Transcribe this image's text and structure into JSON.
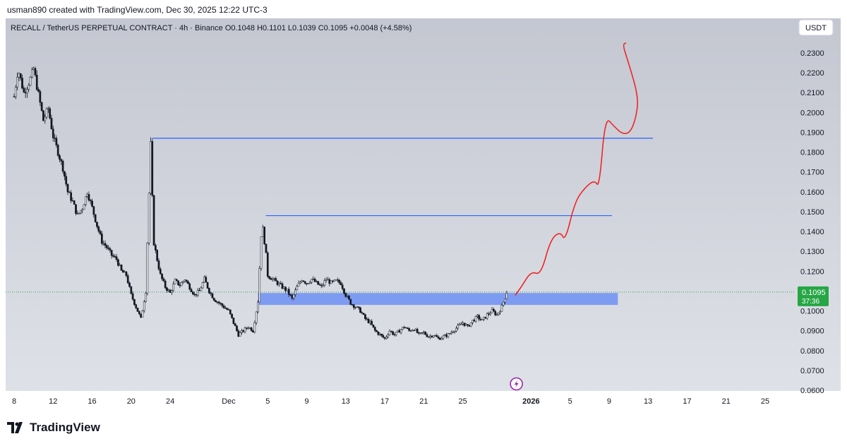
{
  "header": {
    "attribution": "usman890 created with TradingView.com, Dec 30, 2025 12:22 UTC-3"
  },
  "legend": {
    "symbol": "RECALL / TetherUS PERPETUAL CONTRACT · 4h · Binance",
    "open": "O0.1048",
    "high": "H0.1101",
    "low": "L0.1039",
    "close": "C0.1095",
    "change": "+0.0048 (+4.58%)"
  },
  "currency_button": "USDT",
  "price_tag": {
    "price": "0.1095",
    "countdown": "37:36"
  },
  "footer": {
    "logo_text": "TradingView"
  },
  "colors": {
    "background": "#c9ccd6",
    "candle": "#131722",
    "level_line": "#2962ff",
    "zone": "#6f8ff5",
    "forecast": "#ef2626",
    "price_tag": "#26a645",
    "icon": "#9c27b0"
  },
  "chart_data": {
    "type": "candlestick",
    "y_axis": {
      "min": 0.06,
      "max": 0.24,
      "ticks": [
        "0.0600",
        "0.0700",
        "0.0800",
        "0.0900",
        "0.1000",
        "0.1100",
        "0.1200",
        "0.1300",
        "0.1400",
        "0.1500",
        "0.1600",
        "0.1700",
        "0.1800",
        "0.1900",
        "0.2000",
        "0.2100",
        "0.2200",
        "0.2300"
      ]
    },
    "x_axis": {
      "ticks": [
        {
          "label": "8",
          "day": 8
        },
        {
          "label": "12",
          "day": 12
        },
        {
          "label": "16",
          "day": 16
        },
        {
          "label": "20",
          "day": 20
        },
        {
          "label": "24",
          "day": 24
        },
        {
          "label": "Dec",
          "day": 30
        },
        {
          "label": "5",
          "day": 34
        },
        {
          "label": "9",
          "day": 38
        },
        {
          "label": "13",
          "day": 42
        },
        {
          "label": "17",
          "day": 46
        },
        {
          "label": "21",
          "day": 50
        },
        {
          "label": "25",
          "day": 54
        },
        {
          "label": "2026",
          "day": 61,
          "bold": true
        },
        {
          "label": "5",
          "day": 65
        },
        {
          "label": "9",
          "day": 69
        },
        {
          "label": "13",
          "day": 73
        },
        {
          "label": "17",
          "day": 77
        },
        {
          "label": "21",
          "day": 81
        },
        {
          "label": "25",
          "day": 85
        }
      ]
    },
    "price_path": [
      [
        8,
        0.208
      ],
      [
        8.4,
        0.222
      ],
      [
        9,
        0.21
      ],
      [
        9.6,
        0.216
      ],
      [
        10,
        0.222
      ],
      [
        11,
        0.196
      ],
      [
        11.5,
        0.202
      ],
      [
        12,
        0.188
      ],
      [
        12.5,
        0.18
      ],
      [
        13,
        0.172
      ],
      [
        13.5,
        0.16
      ],
      [
        14,
        0.155
      ],
      [
        14.5,
        0.148
      ],
      [
        15,
        0.152
      ],
      [
        15.5,
        0.16
      ],
      [
        16,
        0.152
      ],
      [
        16.5,
        0.143
      ],
      [
        17,
        0.135
      ],
      [
        17.5,
        0.132
      ],
      [
        18,
        0.128
      ],
      [
        18.5,
        0.126
      ],
      [
        19,
        0.12
      ],
      [
        19.5,
        0.118
      ],
      [
        20,
        0.108
      ],
      [
        20.5,
        0.102
      ],
      [
        21,
        0.096
      ],
      [
        21.5,
        0.11
      ],
      [
        22,
        0.184
      ],
      [
        22.3,
        0.135
      ],
      [
        22.7,
        0.125
      ],
      [
        23,
        0.118
      ],
      [
        23.5,
        0.112
      ],
      [
        24,
        0.109
      ],
      [
        24.5,
        0.115
      ],
      [
        25,
        0.113
      ],
      [
        25.5,
        0.116
      ],
      [
        26,
        0.112
      ],
      [
        26.5,
        0.108
      ],
      [
        27,
        0.11
      ],
      [
        27.5,
        0.116
      ],
      [
        28,
        0.11
      ],
      [
        28.5,
        0.106
      ],
      [
        29,
        0.104
      ],
      [
        29.5,
        0.102
      ],
      [
        30,
        0.1
      ],
      [
        30.5,
        0.094
      ],
      [
        31,
        0.088
      ],
      [
        31.5,
        0.09
      ],
      [
        32,
        0.092
      ],
      [
        32.5,
        0.09
      ],
      [
        33,
        0.105
      ],
      [
        33.4,
        0.145
      ],
      [
        33.8,
        0.13
      ],
      [
        34,
        0.118
      ],
      [
        34.5,
        0.116
      ],
      [
        35,
        0.114
      ],
      [
        35.5,
        0.112
      ],
      [
        36,
        0.11
      ],
      [
        36.5,
        0.106
      ],
      [
        37,
        0.112
      ],
      [
        37.5,
        0.116
      ],
      [
        38,
        0.114
      ],
      [
        38.5,
        0.116
      ],
      [
        39,
        0.114
      ],
      [
        39.5,
        0.112
      ],
      [
        40,
        0.116
      ],
      [
        40.5,
        0.114
      ],
      [
        41,
        0.115
      ],
      [
        41.5,
        0.114
      ],
      [
        42,
        0.108
      ],
      [
        42.5,
        0.104
      ],
      [
        43,
        0.102
      ],
      [
        43.5,
        0.1
      ],
      [
        44,
        0.096
      ],
      [
        44.5,
        0.094
      ],
      [
        45,
        0.09
      ],
      [
        45.5,
        0.088
      ],
      [
        46,
        0.086
      ],
      [
        46.5,
        0.09
      ],
      [
        47,
        0.088
      ],
      [
        47.5,
        0.09
      ],
      [
        48,
        0.092
      ],
      [
        48.5,
        0.09
      ],
      [
        49,
        0.091
      ],
      [
        49.5,
        0.088
      ],
      [
        50,
        0.089
      ],
      [
        50.5,
        0.087
      ],
      [
        51,
        0.088
      ],
      [
        51.5,
        0.086
      ],
      [
        52,
        0.087
      ],
      [
        52.5,
        0.088
      ],
      [
        53,
        0.09
      ],
      [
        53.5,
        0.092
      ],
      [
        54,
        0.094
      ],
      [
        54.5,
        0.092
      ],
      [
        55,
        0.095
      ],
      [
        55.5,
        0.097
      ],
      [
        56,
        0.095
      ],
      [
        56.5,
        0.098
      ],
      [
        57,
        0.1
      ],
      [
        57.5,
        0.098
      ],
      [
        58,
        0.102
      ],
      [
        58.5,
        0.1095
      ]
    ],
    "horizontal_lines": [
      {
        "price": 0.187,
        "from_day": 22.2,
        "to_day": 73.5
      },
      {
        "price": 0.148,
        "from_day": 33.8,
        "to_day": 69.3
      }
    ],
    "zone": {
      "from_day": 33.0,
      "to_day": 69.9,
      "low": 0.103,
      "high": 0.109
    },
    "forecast_path": [
      [
        59.4,
        0.108
      ],
      [
        60.0,
        0.112
      ],
      [
        61.0,
        0.12
      ],
      [
        62.0,
        0.118
      ],
      [
        63.0,
        0.136
      ],
      [
        64.0,
        0.14
      ],
      [
        64.5,
        0.135
      ],
      [
        65.5,
        0.155
      ],
      [
        66.5,
        0.162
      ],
      [
        67.5,
        0.166
      ],
      [
        68.0,
        0.162
      ],
      [
        68.6,
        0.198
      ],
      [
        69.5,
        0.193
      ],
      [
        70.4,
        0.189
      ],
      [
        71.2,
        0.19
      ],
      [
        71.8,
        0.198
      ],
      [
        72.0,
        0.208
      ],
      [
        71.0,
        0.225
      ],
      [
        70.4,
        0.234
      ],
      [
        70.7,
        0.235
      ]
    ],
    "current_price": 0.1095,
    "ylim": [
      0.06,
      0.24
    ]
  }
}
